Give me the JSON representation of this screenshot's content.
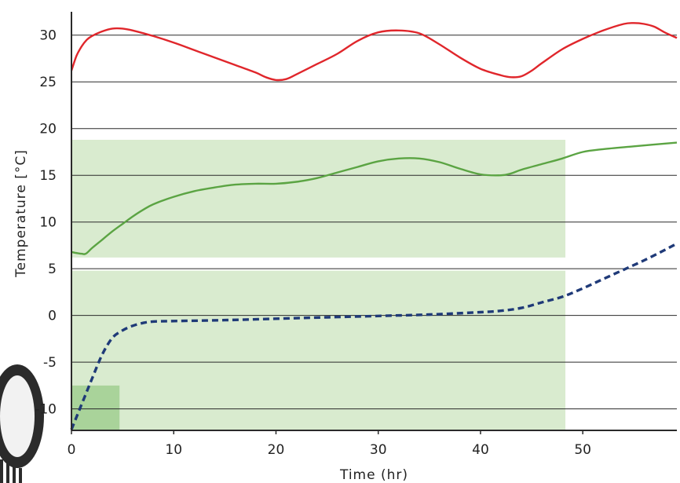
{
  "chart_data": {
    "type": "line",
    "title": "",
    "xlabel": "Time (hr)",
    "ylabel": "Temperature [°C]",
    "xlim": [
      0,
      59.2
    ],
    "ylim": [
      -12.3,
      32.5
    ],
    "x_ticks": [
      0,
      10,
      20,
      30,
      40,
      50
    ],
    "y_ticks": [
      -10,
      -5,
      0,
      5,
      10,
      15,
      20,
      25,
      30
    ],
    "grid": "horizontal",
    "legend": "none",
    "shaded_regions": [
      {
        "x": [
          0,
          48.3
        ],
        "y": [
          6.2,
          18.8
        ],
        "color": "#d9ebcf"
      },
      {
        "x": [
          0,
          48.3
        ],
        "y": [
          -12.3,
          4.8
        ],
        "color": "#d9ebcf"
      },
      {
        "x": [
          0,
          4.7
        ],
        "y": [
          -12.3,
          -7.5
        ],
        "color": "#a9d39a"
      }
    ],
    "series": [
      {
        "color": "#e0262b",
        "style": "solid",
        "points": [
          [
            0,
            26.2
          ],
          [
            0.5,
            27.8
          ],
          [
            1,
            28.8
          ],
          [
            1.5,
            29.5
          ],
          [
            2,
            29.9
          ],
          [
            3,
            30.4
          ],
          [
            4,
            30.7
          ],
          [
            5,
            30.7
          ],
          [
            6,
            30.5
          ],
          [
            8,
            29.9
          ],
          [
            10,
            29.2
          ],
          [
            12,
            28.4
          ],
          [
            14,
            27.6
          ],
          [
            16,
            26.8
          ],
          [
            18,
            26.0
          ],
          [
            19,
            25.5
          ],
          [
            20,
            25.2
          ],
          [
            21,
            25.3
          ],
          [
            22,
            25.8
          ],
          [
            24,
            26.9
          ],
          [
            26,
            28.0
          ],
          [
            28,
            29.4
          ],
          [
            30,
            30.3
          ],
          [
            32,
            30.5
          ],
          [
            34,
            30.2
          ],
          [
            36,
            29.0
          ],
          [
            38,
            27.6
          ],
          [
            40,
            26.4
          ],
          [
            42,
            25.7
          ],
          [
            43,
            25.5
          ],
          [
            44,
            25.6
          ],
          [
            45,
            26.2
          ],
          [
            46,
            27.0
          ],
          [
            48,
            28.5
          ],
          [
            50,
            29.6
          ],
          [
            52,
            30.5
          ],
          [
            54,
            31.2
          ],
          [
            55,
            31.3
          ],
          [
            56,
            31.2
          ],
          [
            57,
            30.9
          ],
          [
            58,
            30.3
          ],
          [
            59.2,
            29.7
          ]
        ]
      },
      {
        "color": "#5ba443",
        "style": "solid",
        "points": [
          [
            0,
            6.8
          ],
          [
            0.4,
            6.7
          ],
          [
            1,
            6.6
          ],
          [
            1.4,
            6.6
          ],
          [
            2,
            7.2
          ],
          [
            3,
            8.1
          ],
          [
            4,
            9.0
          ],
          [
            5,
            9.8
          ],
          [
            6,
            10.6
          ],
          [
            7,
            11.3
          ],
          [
            8,
            11.9
          ],
          [
            10,
            12.7
          ],
          [
            12,
            13.3
          ],
          [
            14,
            13.7
          ],
          [
            16,
            14.0
          ],
          [
            18,
            14.1
          ],
          [
            20,
            14.1
          ],
          [
            22,
            14.3
          ],
          [
            24,
            14.7
          ],
          [
            26,
            15.3
          ],
          [
            28,
            15.9
          ],
          [
            30,
            16.5
          ],
          [
            32,
            16.8
          ],
          [
            34,
            16.8
          ],
          [
            36,
            16.4
          ],
          [
            38,
            15.7
          ],
          [
            40,
            15.1
          ],
          [
            42,
            15.0
          ],
          [
            43,
            15.2
          ],
          [
            44,
            15.6
          ],
          [
            46,
            16.2
          ],
          [
            48,
            16.8
          ],
          [
            50,
            17.5
          ],
          [
            52,
            17.8
          ],
          [
            55,
            18.1
          ],
          [
            59.2,
            18.5
          ]
        ]
      },
      {
        "color": "#1f3a78",
        "style": "dashed",
        "points": [
          [
            0,
            -12.2
          ],
          [
            1,
            -9.5
          ],
          [
            2,
            -6.8
          ],
          [
            3,
            -4.2
          ],
          [
            4,
            -2.4
          ],
          [
            5,
            -1.6
          ],
          [
            6,
            -1.1
          ],
          [
            7,
            -0.8
          ],
          [
            8,
            -0.65
          ],
          [
            10,
            -0.6
          ],
          [
            15,
            -0.5
          ],
          [
            20,
            -0.35
          ],
          [
            25,
            -0.2
          ],
          [
            30,
            -0.05
          ],
          [
            35,
            0.1
          ],
          [
            40,
            0.35
          ],
          [
            42,
            0.5
          ],
          [
            44,
            0.8
          ],
          [
            46,
            1.4
          ],
          [
            48,
            2.0
          ],
          [
            50,
            2.9
          ],
          [
            52,
            3.9
          ],
          [
            54,
            4.9
          ],
          [
            56,
            5.9
          ],
          [
            58,
            7.0
          ],
          [
            59.2,
            7.7
          ]
        ]
      }
    ]
  }
}
